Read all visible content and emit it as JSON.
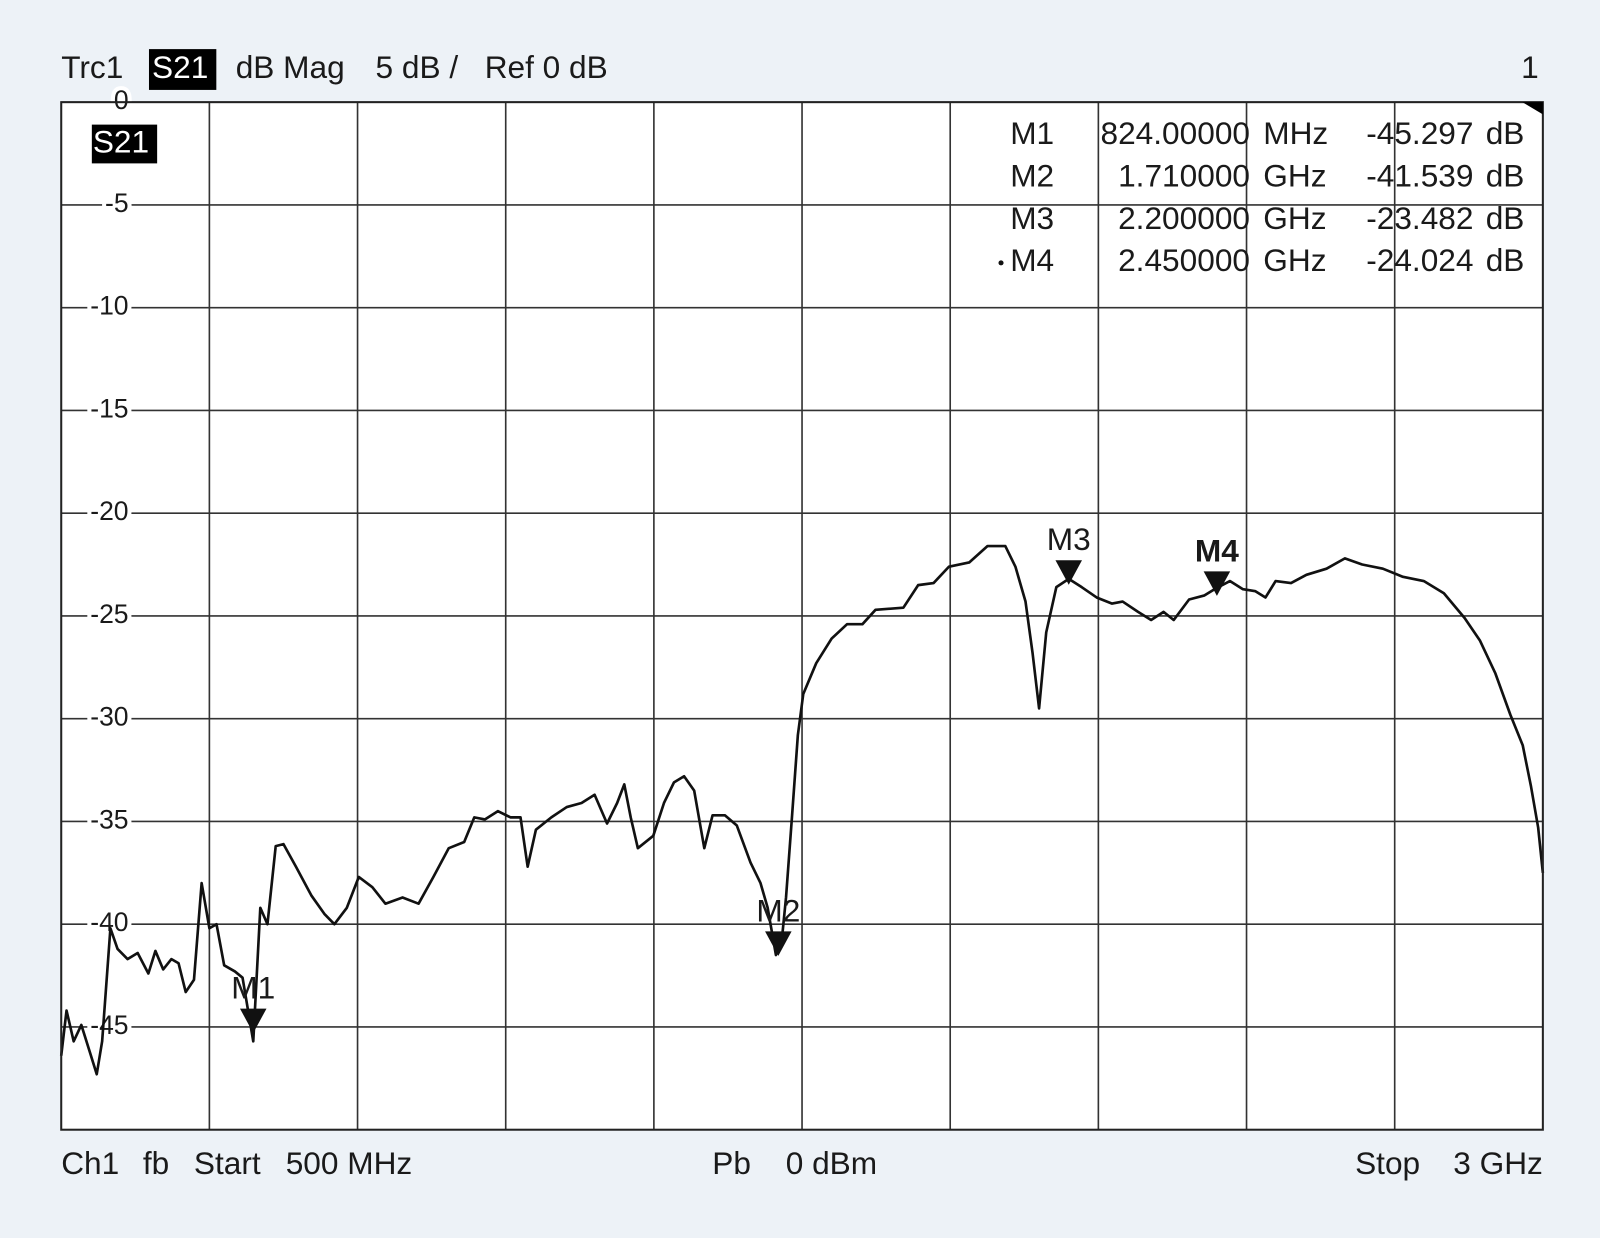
{
  "header": {
    "trace": "Trc1",
    "parameter": "S21",
    "format": "dB Mag",
    "scale": "5 dB /",
    "reference": "Ref 0 dB",
    "channel_number": "1"
  },
  "footer": {
    "channel": "Ch1",
    "mode": "fb",
    "start_label": "Start",
    "start": "500 MHz",
    "power_label": "Pb",
    "power": "0 dBm",
    "stop_label": "Stop",
    "stop": "3 GHz"
  },
  "chart_data": {
    "type": "line",
    "x": [
      500,
      509,
      521,
      534,
      548,
      560,
      569,
      583,
      595,
      612,
      629,
      647,
      659,
      672,
      686,
      698,
      710,
      724,
      737,
      750,
      762,
      775,
      793,
      806,
      824,
      836,
      848,
      862,
      875,
      896,
      922,
      944,
      961,
      982,
      1002,
      1025,
      1047,
      1076,
      1103,
      1128,
      1154,
      1180,
      1197,
      1215,
      1237,
      1258,
      1275,
      1287,
      1301,
      1327,
      1353,
      1378,
      1400,
      1421,
      1438,
      1450,
      1461,
      1473,
      1499,
      1517,
      1534,
      1551,
      1568,
      1585,
      1599,
      1620,
      1640,
      1663,
      1680,
      1692,
      1706,
      1715,
      1723,
      1733,
      1743,
      1752,
      1774,
      1800,
      1826,
      1852,
      1874,
      1921,
      1946,
      1972,
      1998,
      2032,
      2063,
      2093,
      2110,
      2127,
      2139,
      2150,
      2162,
      2179,
      2200,
      2222,
      2247,
      2273,
      2291,
      2317,
      2339,
      2360,
      2377,
      2403,
      2429,
      2446,
      2472,
      2494,
      2515,
      2532,
      2549,
      2575,
      2601,
      2635,
      2666,
      2695,
      2730,
      2764,
      2799,
      2833,
      2868,
      2894,
      2920,
      2945,
      2966,
      2980,
      2992,
      3000
    ],
    "series": [
      {
        "name": "S21",
        "color": "#111111",
        "values": [
          -46.4,
          -44.2,
          -45.7,
          -44.9,
          -46.2,
          -47.3,
          -45.7,
          -40.2,
          -41.2,
          -41.7,
          -41.4,
          -42.4,
          -41.3,
          -42.2,
          -41.7,
          -41.9,
          -43.3,
          -42.7,
          -38.0,
          -40.2,
          -40.0,
          -42.0,
          -42.3,
          -42.6,
          -45.7,
          -39.2,
          -40.0,
          -36.2,
          -36.1,
          -37.2,
          -38.6,
          -39.5,
          -40.0,
          -39.2,
          -37.7,
          -38.2,
          -39.0,
          -38.7,
          -39.0,
          -37.7,
          -36.3,
          -36.0,
          -34.8,
          -34.9,
          -34.5,
          -34.8,
          -34.8,
          -37.2,
          -35.4,
          -34.8,
          -34.3,
          -34.1,
          -33.7,
          -35.1,
          -34.1,
          -33.2,
          -34.8,
          -36.3,
          -35.7,
          -34.1,
          -33.1,
          -32.8,
          -33.5,
          -36.3,
          -34.7,
          -34.7,
          -35.2,
          -37.0,
          -38.0,
          -39.2,
          -41.5,
          -41.0,
          -38.7,
          -34.8,
          -30.8,
          -28.8,
          -27.3,
          -26.1,
          -25.4,
          -25.4,
          -24.7,
          -24.6,
          -23.5,
          -23.4,
          -22.6,
          -22.4,
          -21.6,
          -21.6,
          -22.6,
          -24.3,
          -26.8,
          -29.5,
          -25.8,
          -23.6,
          -23.2,
          -23.6,
          -24.1,
          -24.4,
          -24.3,
          -24.8,
          -25.2,
          -24.8,
          -25.2,
          -24.2,
          -24.0,
          -23.7,
          -23.3,
          -23.7,
          -23.8,
          -24.1,
          -23.3,
          -23.4,
          -23.0,
          -22.7,
          -22.2,
          -22.5,
          -22.7,
          -23.1,
          -23.3,
          -23.9,
          -25.1,
          -26.2,
          -27.8,
          -29.8,
          -31.3,
          -33.3,
          -35.3,
          -37.5
        ]
      }
    ],
    "xlim": [
      500,
      3000
    ],
    "ylim": [
      -50,
      0
    ],
    "yticks": [
      0,
      -5,
      -10,
      -15,
      -20,
      -25,
      -30,
      -35,
      -40,
      -45
    ],
    "grid": true,
    "markers": [
      {
        "name": "M1",
        "x": {
          "value": 824,
          "label": "824.00000"
        },
        "x_unit": "MHz",
        "value": -45.297,
        "unit": "dB"
      },
      {
        "name": "M2",
        "x": {
          "value": 1710,
          "label": "1.710000"
        },
        "x_unit": "GHz",
        "value": -41.539,
        "unit": "dB"
      },
      {
        "name": "M3",
        "x": {
          "value": 2200,
          "label": "2.200000"
        },
        "x_unit": "GHz",
        "value": -23.482,
        "unit": "dB"
      },
      {
        "name": "M4",
        "x": {
          "value": 2450,
          "label": "2.450000"
        },
        "x_unit": "GHz",
        "value": -24.024,
        "unit": "dB"
      }
    ]
  }
}
